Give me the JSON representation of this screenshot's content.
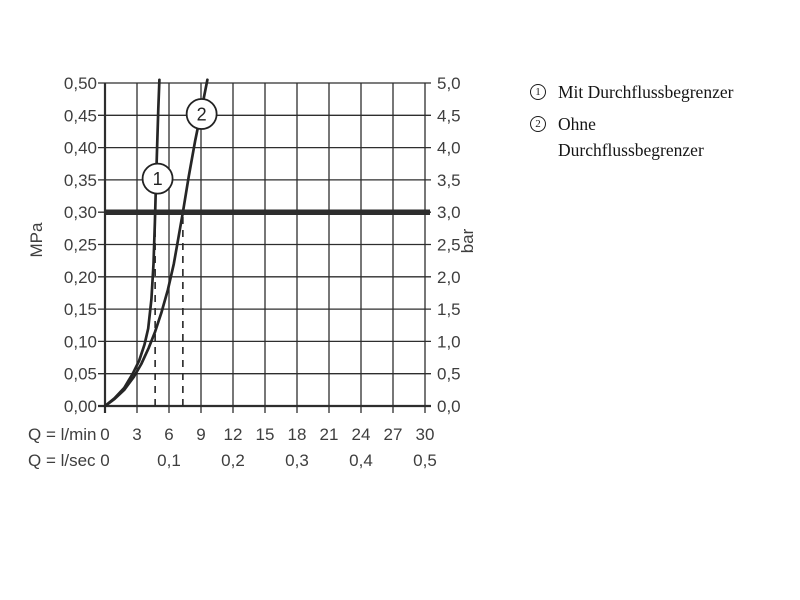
{
  "legend": {
    "items": [
      {
        "number": "1",
        "label": "Mit Durchflussbegrenzer"
      },
      {
        "number": "2",
        "label": "Ohne\nDurchflussbegrenzer"
      }
    ]
  },
  "chart_data": {
    "type": "line",
    "title": "",
    "x_axis": {
      "label_row1": "Q = l/min",
      "label_row2": "Q = l/sec",
      "range_lmin": [
        0,
        30
      ],
      "ticks_lmin": [
        {
          "v": 0,
          "label": "0"
        },
        {
          "v": 3,
          "label": "3"
        },
        {
          "v": 6,
          "label": "6"
        },
        {
          "v": 9,
          "label": "9"
        },
        {
          "v": 12,
          "label": "12"
        },
        {
          "v": 15,
          "label": "15"
        },
        {
          "v": 18,
          "label": "18"
        },
        {
          "v": 21,
          "label": "21"
        },
        {
          "v": 24,
          "label": "24"
        },
        {
          "v": 27,
          "label": "27"
        },
        {
          "v": 30,
          "label": "30"
        }
      ],
      "ticks_lsec": [
        {
          "v": 0,
          "label": "0"
        },
        {
          "v": 6,
          "label": "0,1"
        },
        {
          "v": 12,
          "label": "0,2"
        },
        {
          "v": 18,
          "label": "0,3"
        },
        {
          "v": 24,
          "label": "0,4"
        },
        {
          "v": 30,
          "label": "0,5"
        }
      ]
    },
    "y_axis_left": {
      "label": "MPa",
      "range": [
        0,
        0.5
      ],
      "ticks": [
        {
          "v": 0.0,
          "label": "0,00"
        },
        {
          "v": 0.05,
          "label": "0,05"
        },
        {
          "v": 0.1,
          "label": "0,10"
        },
        {
          "v": 0.15,
          "label": "0,15"
        },
        {
          "v": 0.2,
          "label": "0,20"
        },
        {
          "v": 0.25,
          "label": "0,25"
        },
        {
          "v": 0.3,
          "label": "0,30"
        },
        {
          "v": 0.35,
          "label": "0,35"
        },
        {
          "v": 0.4,
          "label": "0,40"
        },
        {
          "v": 0.45,
          "label": "0,45"
        },
        {
          "v": 0.5,
          "label": "0,50"
        }
      ]
    },
    "y_axis_right": {
      "label": "bar",
      "range": [
        0,
        5
      ],
      "ticks": [
        {
          "v": 0.0,
          "label": "0,0"
        },
        {
          "v": 0.05,
          "label": "0,5"
        },
        {
          "v": 0.1,
          "label": "1,0"
        },
        {
          "v": 0.15,
          "label": "1,5"
        },
        {
          "v": 0.2,
          "label": "2,0"
        },
        {
          "v": 0.25,
          "label": "2,5"
        },
        {
          "v": 0.3,
          "label": "3,0"
        },
        {
          "v": 0.35,
          "label": "3,5"
        },
        {
          "v": 0.4,
          "label": "4,0"
        },
        {
          "v": 0.45,
          "label": "4,5"
        },
        {
          "v": 0.5,
          "label": "5,0"
        }
      ]
    },
    "grid": {
      "on": true,
      "x_step_lmin": 3,
      "y_step_mpa": 0.05
    },
    "reference_line": {
      "y_mpa": 0.3,
      "y_bar": 3.0,
      "style": "thick"
    },
    "dashed_guides_lmin": [
      4.7,
      7.3
    ],
    "series": [
      {
        "id": "1",
        "name": "Mit Durchflussbegrenzer",
        "marker": {
          "x": 4.93,
          "y": 0.352
        },
        "points": [
          [
            0,
            0
          ],
          [
            0.9,
            0.012
          ],
          [
            1.8,
            0.028
          ],
          [
            2.6,
            0.05
          ],
          [
            3.2,
            0.07
          ],
          [
            3.7,
            0.095
          ],
          [
            4.05,
            0.12
          ],
          [
            4.35,
            0.165
          ],
          [
            4.55,
            0.22
          ],
          [
            4.68,
            0.285
          ],
          [
            4.76,
            0.335
          ],
          [
            4.88,
            0.4
          ],
          [
            5.0,
            0.46
          ],
          [
            5.1,
            0.505
          ]
        ]
      },
      {
        "id": "2",
        "name": "Ohne Durchflussbegrenzer",
        "marker": {
          "x": 9.06,
          "y": 0.452
        },
        "points": [
          [
            0,
            0
          ],
          [
            0.9,
            0.011
          ],
          [
            1.8,
            0.025
          ],
          [
            2.7,
            0.045
          ],
          [
            3.4,
            0.065
          ],
          [
            4.1,
            0.09
          ],
          [
            4.7,
            0.115
          ],
          [
            5.3,
            0.145
          ],
          [
            5.9,
            0.18
          ],
          [
            6.45,
            0.22
          ],
          [
            6.9,
            0.262
          ],
          [
            7.3,
            0.3
          ],
          [
            7.85,
            0.355
          ],
          [
            8.45,
            0.41
          ],
          [
            9.0,
            0.455
          ],
          [
            9.6,
            0.505
          ]
        ]
      }
    ],
    "colors": {
      "line": "#262626",
      "grid": "#2e2e2e",
      "reference": "#2d2d2d",
      "text": "#3e3e3e",
      "background": "#ffffff"
    }
  }
}
